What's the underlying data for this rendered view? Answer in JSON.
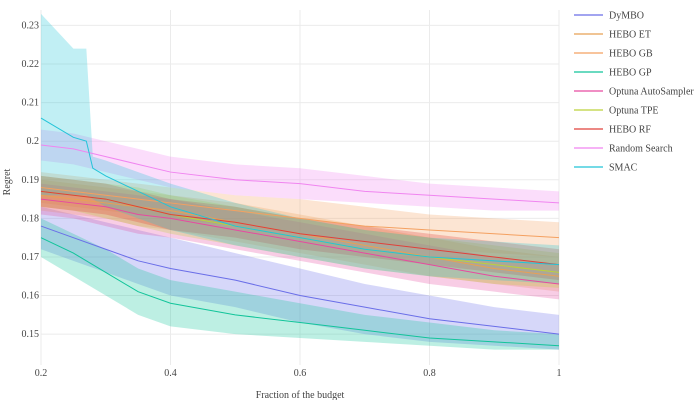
{
  "chart_data": {
    "type": "line",
    "title": "",
    "xlabel": "Fraction of the budget",
    "ylabel": "Regret",
    "xlim": [
      0.2,
      1.0
    ],
    "ylim": [
      0.142,
      0.234
    ],
    "xticks": [
      0.2,
      0.4,
      0.6,
      0.8,
      1.0
    ],
    "xtick_labels": [
      "0.2",
      "0.4",
      "0.6",
      "0.8",
      "1"
    ],
    "yticks": [
      0.15,
      0.16,
      0.17,
      0.18,
      0.19,
      0.2,
      0.21,
      0.22,
      0.23
    ],
    "ytick_labels": [
      "0.15",
      "0.16",
      "0.17",
      "0.18",
      "0.19",
      "0.2",
      "0.21",
      "0.22",
      "0.23"
    ],
    "grid": true,
    "legend_position": "right",
    "series": [
      {
        "name": "DyMBO",
        "color": "#6a6ee8",
        "x": [
          0.2,
          0.25,
          0.3,
          0.35,
          0.4,
          0.5,
          0.6,
          0.7,
          0.8,
          0.9,
          1.0
        ],
        "y": [
          0.178,
          0.175,
          0.172,
          0.169,
          0.167,
          0.164,
          0.16,
          0.157,
          0.154,
          0.152,
          0.15
        ],
        "lower": [
          0.172,
          0.169,
          0.166,
          0.163,
          0.16,
          0.157,
          0.153,
          0.15,
          0.148,
          0.147,
          0.146
        ],
        "upper": [
          0.183,
          0.181,
          0.179,
          0.177,
          0.175,
          0.171,
          0.167,
          0.163,
          0.16,
          0.157,
          0.155
        ]
      },
      {
        "name": "HEBO ET",
        "color": "#e8a055",
        "x": [
          0.2,
          0.25,
          0.3,
          0.35,
          0.4,
          0.5,
          0.6,
          0.7,
          0.8,
          0.9,
          1.0
        ],
        "y": [
          0.186,
          0.185,
          0.184,
          0.183,
          0.182,
          0.179,
          0.176,
          0.173,
          0.17,
          0.167,
          0.165
        ],
        "lower": [
          0.182,
          0.181,
          0.18,
          0.178,
          0.177,
          0.174,
          0.171,
          0.168,
          0.165,
          0.163,
          0.161
        ],
        "upper": [
          0.19,
          0.189,
          0.188,
          0.187,
          0.186,
          0.184,
          0.181,
          0.178,
          0.175,
          0.172,
          0.17
        ]
      },
      {
        "name": "HEBO GB",
        "color": "#f4a060",
        "x": [
          0.2,
          0.25,
          0.3,
          0.35,
          0.4,
          0.5,
          0.6,
          0.7,
          0.8,
          0.9,
          1.0
        ],
        "y": [
          0.188,
          0.187,
          0.186,
          0.185,
          0.184,
          0.182,
          0.18,
          0.178,
          0.177,
          0.176,
          0.175
        ],
        "lower": [
          0.184,
          0.183,
          0.182,
          0.181,
          0.18,
          0.178,
          0.176,
          0.174,
          0.172,
          0.171,
          0.17
        ],
        "upper": [
          0.192,
          0.191,
          0.19,
          0.189,
          0.188,
          0.186,
          0.185,
          0.183,
          0.181,
          0.18,
          0.179
        ]
      },
      {
        "name": "HEBO GP",
        "color": "#12c49a",
        "x": [
          0.2,
          0.25,
          0.3,
          0.35,
          0.4,
          0.5,
          0.6,
          0.7,
          0.8,
          0.9,
          1.0
        ],
        "y": [
          0.175,
          0.171,
          0.166,
          0.161,
          0.158,
          0.155,
          0.153,
          0.151,
          0.149,
          0.148,
          0.147
        ],
        "lower": [
          0.17,
          0.165,
          0.16,
          0.155,
          0.152,
          0.15,
          0.149,
          0.148,
          0.147,
          0.146,
          0.146
        ],
        "upper": [
          0.18,
          0.176,
          0.172,
          0.167,
          0.164,
          0.161,
          0.158,
          0.155,
          0.153,
          0.151,
          0.15
        ]
      },
      {
        "name": "Optuna AutoSampler",
        "color": "#e64aa0",
        "x": [
          0.2,
          0.25,
          0.3,
          0.35,
          0.4,
          0.5,
          0.6,
          0.7,
          0.8,
          0.9,
          1.0
        ],
        "y": [
          0.185,
          0.184,
          0.183,
          0.181,
          0.18,
          0.177,
          0.174,
          0.171,
          0.168,
          0.165,
          0.163
        ],
        "lower": [
          0.181,
          0.18,
          0.178,
          0.176,
          0.175,
          0.172,
          0.169,
          0.166,
          0.163,
          0.161,
          0.159
        ],
        "upper": [
          0.189,
          0.188,
          0.187,
          0.186,
          0.185,
          0.182,
          0.179,
          0.176,
          0.173,
          0.17,
          0.168
        ]
      },
      {
        "name": "Optuna TPE",
        "color": "#bcd23a",
        "x": [
          0.2,
          0.25,
          0.3,
          0.35,
          0.4,
          0.5,
          0.6,
          0.7,
          0.8,
          0.9,
          1.0
        ],
        "y": [
          0.187,
          0.186,
          0.185,
          0.183,
          0.181,
          0.178,
          0.175,
          0.172,
          0.17,
          0.168,
          0.166
        ],
        "lower": [
          0.183,
          0.182,
          0.18,
          0.178,
          0.176,
          0.173,
          0.17,
          0.167,
          0.165,
          0.163,
          0.162
        ],
        "upper": [
          0.191,
          0.19,
          0.189,
          0.188,
          0.186,
          0.183,
          0.18,
          0.177,
          0.175,
          0.173,
          0.171
        ]
      },
      {
        "name": "HEBO RF",
        "color": "#e0403a",
        "x": [
          0.2,
          0.25,
          0.3,
          0.35,
          0.4,
          0.5,
          0.6,
          0.7,
          0.8,
          0.9,
          1.0
        ],
        "y": [
          0.187,
          0.186,
          0.185,
          0.183,
          0.181,
          0.179,
          0.176,
          0.174,
          0.172,
          0.17,
          0.168
        ],
        "lower": [
          0.183,
          0.182,
          0.181,
          0.179,
          0.177,
          0.175,
          0.172,
          0.17,
          0.168,
          0.166,
          0.164
        ],
        "upper": [
          0.191,
          0.19,
          0.189,
          0.187,
          0.185,
          0.183,
          0.18,
          0.178,
          0.176,
          0.174,
          0.172
        ]
      },
      {
        "name": "Random Search",
        "color": "#f085f0",
        "x": [
          0.2,
          0.25,
          0.3,
          0.35,
          0.4,
          0.5,
          0.6,
          0.7,
          0.8,
          0.9,
          1.0
        ],
        "y": [
          0.199,
          0.198,
          0.196,
          0.194,
          0.192,
          0.19,
          0.189,
          0.187,
          0.186,
          0.185,
          0.184
        ],
        "lower": [
          0.195,
          0.194,
          0.192,
          0.19,
          0.188,
          0.186,
          0.185,
          0.184,
          0.183,
          0.182,
          0.182
        ],
        "upper": [
          0.203,
          0.202,
          0.2,
          0.198,
          0.196,
          0.194,
          0.193,
          0.191,
          0.189,
          0.188,
          0.187
        ]
      },
      {
        "name": "SMAC",
        "color": "#22c4d8",
        "x": [
          0.2,
          0.25,
          0.27,
          0.28,
          0.3,
          0.35,
          0.4,
          0.5,
          0.6,
          0.7,
          0.8,
          0.9,
          1.0
        ],
        "y": [
          0.206,
          0.201,
          0.2,
          0.193,
          0.191,
          0.187,
          0.183,
          0.178,
          0.175,
          0.172,
          0.17,
          0.169,
          0.168
        ],
        "lower": [
          0.186,
          0.186,
          0.186,
          0.185,
          0.183,
          0.18,
          0.177,
          0.173,
          0.17,
          0.167,
          0.165,
          0.164,
          0.163
        ],
        "upper": [
          0.233,
          0.224,
          0.224,
          0.196,
          0.195,
          0.192,
          0.189,
          0.184,
          0.18,
          0.177,
          0.175,
          0.174,
          0.173
        ]
      }
    ]
  }
}
